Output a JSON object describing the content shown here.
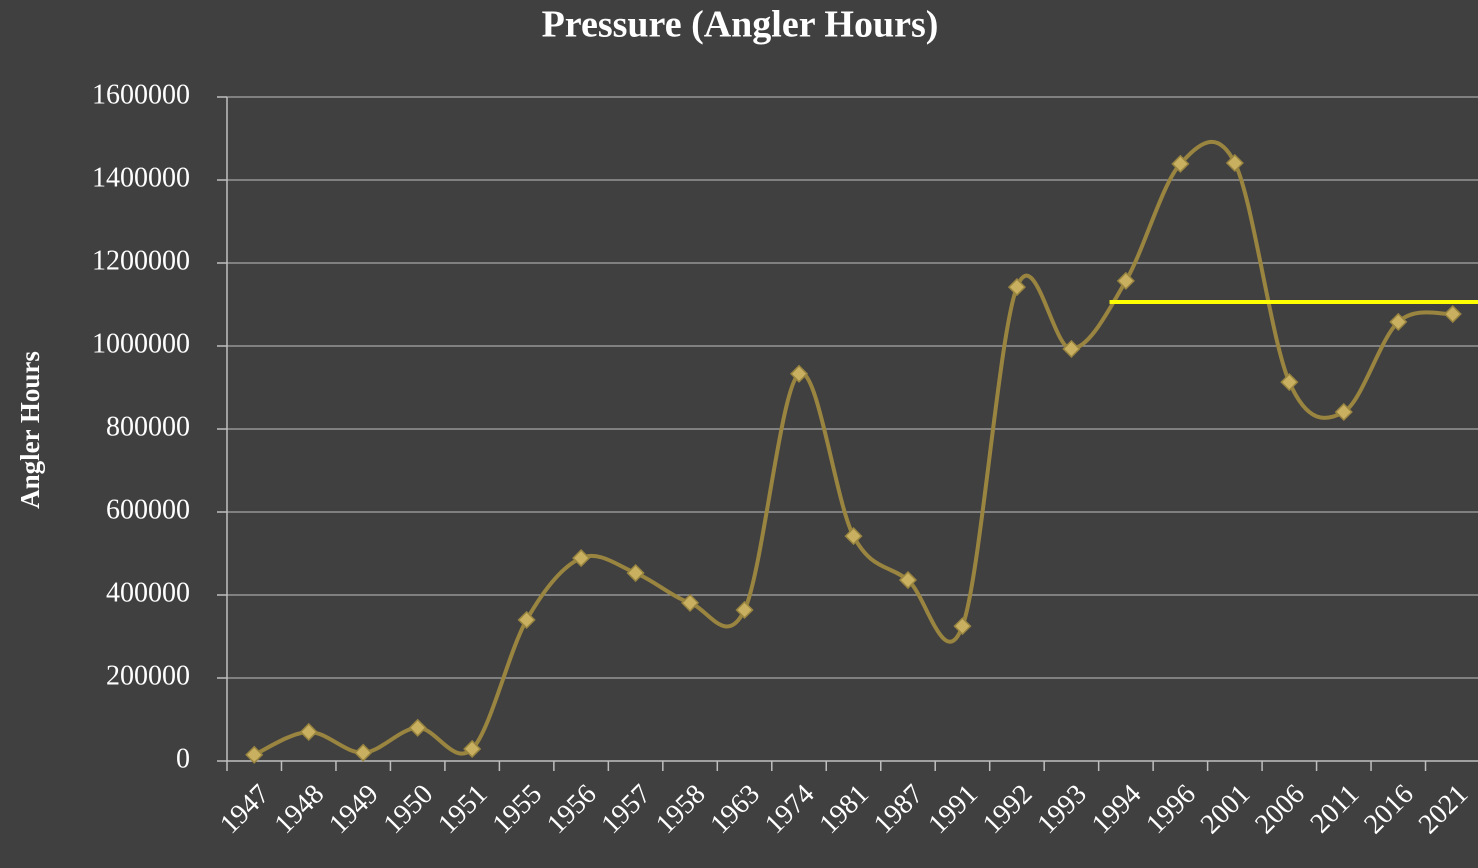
{
  "chart_data": {
    "type": "line",
    "title": "Pressure (Angler Hours)",
    "y_label": "Angler Hours",
    "categories": [
      "1947",
      "1948",
      "1949",
      "1950",
      "1951",
      "1955",
      "1956",
      "1957",
      "1958",
      "1963",
      "1974",
      "1981",
      "1987",
      "1991",
      "1992",
      "1993",
      "1994",
      "1996",
      "2001",
      "2006",
      "2011",
      "2016",
      "2021"
    ],
    "series": [
      {
        "name": "Angler Hours",
        "color": "#9a8540",
        "marker_color": "#c8b060",
        "values": [
          15000,
          70000,
          20000,
          80000,
          29000,
          340000,
          489000,
          453000,
          381000,
          364000,
          933000,
          542000,
          436000,
          325000,
          1142000,
          993000,
          1157000,
          1439000,
          1441000,
          913000,
          841000,
          1058000,
          1077000
        ]
      }
    ],
    "reference_line": {
      "value": 1106000,
      "color": "#ffff00"
    },
    "ylim": [
      0,
      1600000
    ],
    "yticks": [
      0,
      200000,
      400000,
      600000,
      800000,
      1000000,
      1200000,
      1400000,
      1600000
    ],
    "grid": true,
    "smooth": true
  }
}
